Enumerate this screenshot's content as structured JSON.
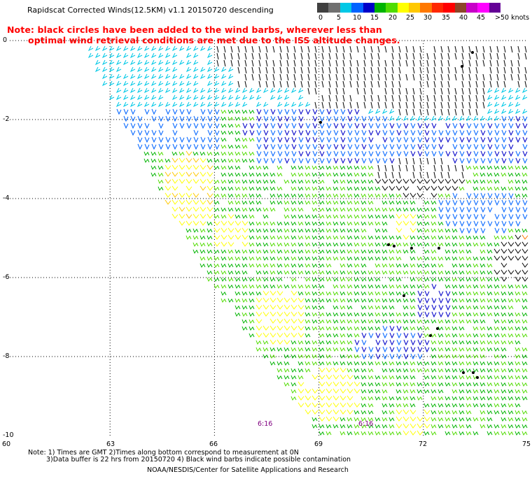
{
  "title": "Rapidscat Corrected Winds(12.5KM) v1.1 20150720 descending",
  "note_lines": [
    "Note: black circles have been added to the wind barbs, wherever less than",
    "optimal wind retrieval conditions are met due to the ISS altitude changes."
  ],
  "legend": {
    "colors": [
      "#404040",
      "#707070",
      "#00c8e6",
      "#0064ff",
      "#0000c8",
      "#00b400",
      "#50dc00",
      "#ffff00",
      "#ffc800",
      "#ff7800",
      "#ff2800",
      "#ff0000",
      "#8c4628",
      "#c800c8",
      "#ff00ff",
      "#640096"
    ],
    "labels": [
      "0",
      "5",
      "10",
      "15",
      "20",
      "25",
      "30",
      "35",
      "40",
      "45",
      ">50 knots"
    ]
  },
  "lat_labels": [
    "0",
    "-2",
    "-4",
    "-6",
    "-8",
    "-10"
  ],
  "lon_labels": [
    "60",
    "63",
    "66",
    "69",
    "72",
    "75"
  ],
  "time_labels": [
    "6:16",
    "6:16"
  ],
  "footer": [
    "Note: 1) Times are GMT 2)Times along bottom correspond to measurement at 0N",
    "3)Data buffer is 22 hrs from 20150720 4) Black wind barbs indicate possible contamination",
    "NOAA/NESDIS/Center for Satellite Applications and Research"
  ],
  "map": {
    "lat_range": [
      -10,
      0
    ],
    "lon_range": [
      60,
      75
    ],
    "grid": "dotted",
    "barb_colors": {
      "black": "#000000",
      "cyan": "#00c8e6",
      "blue": "#0064ff",
      "navy": "#0000c8",
      "green": "#00b400",
      "light_green": "#50dc00",
      "yellow": "#ffff00",
      "gold": "#ffc800",
      "orange": "#ff7800"
    }
  }
}
